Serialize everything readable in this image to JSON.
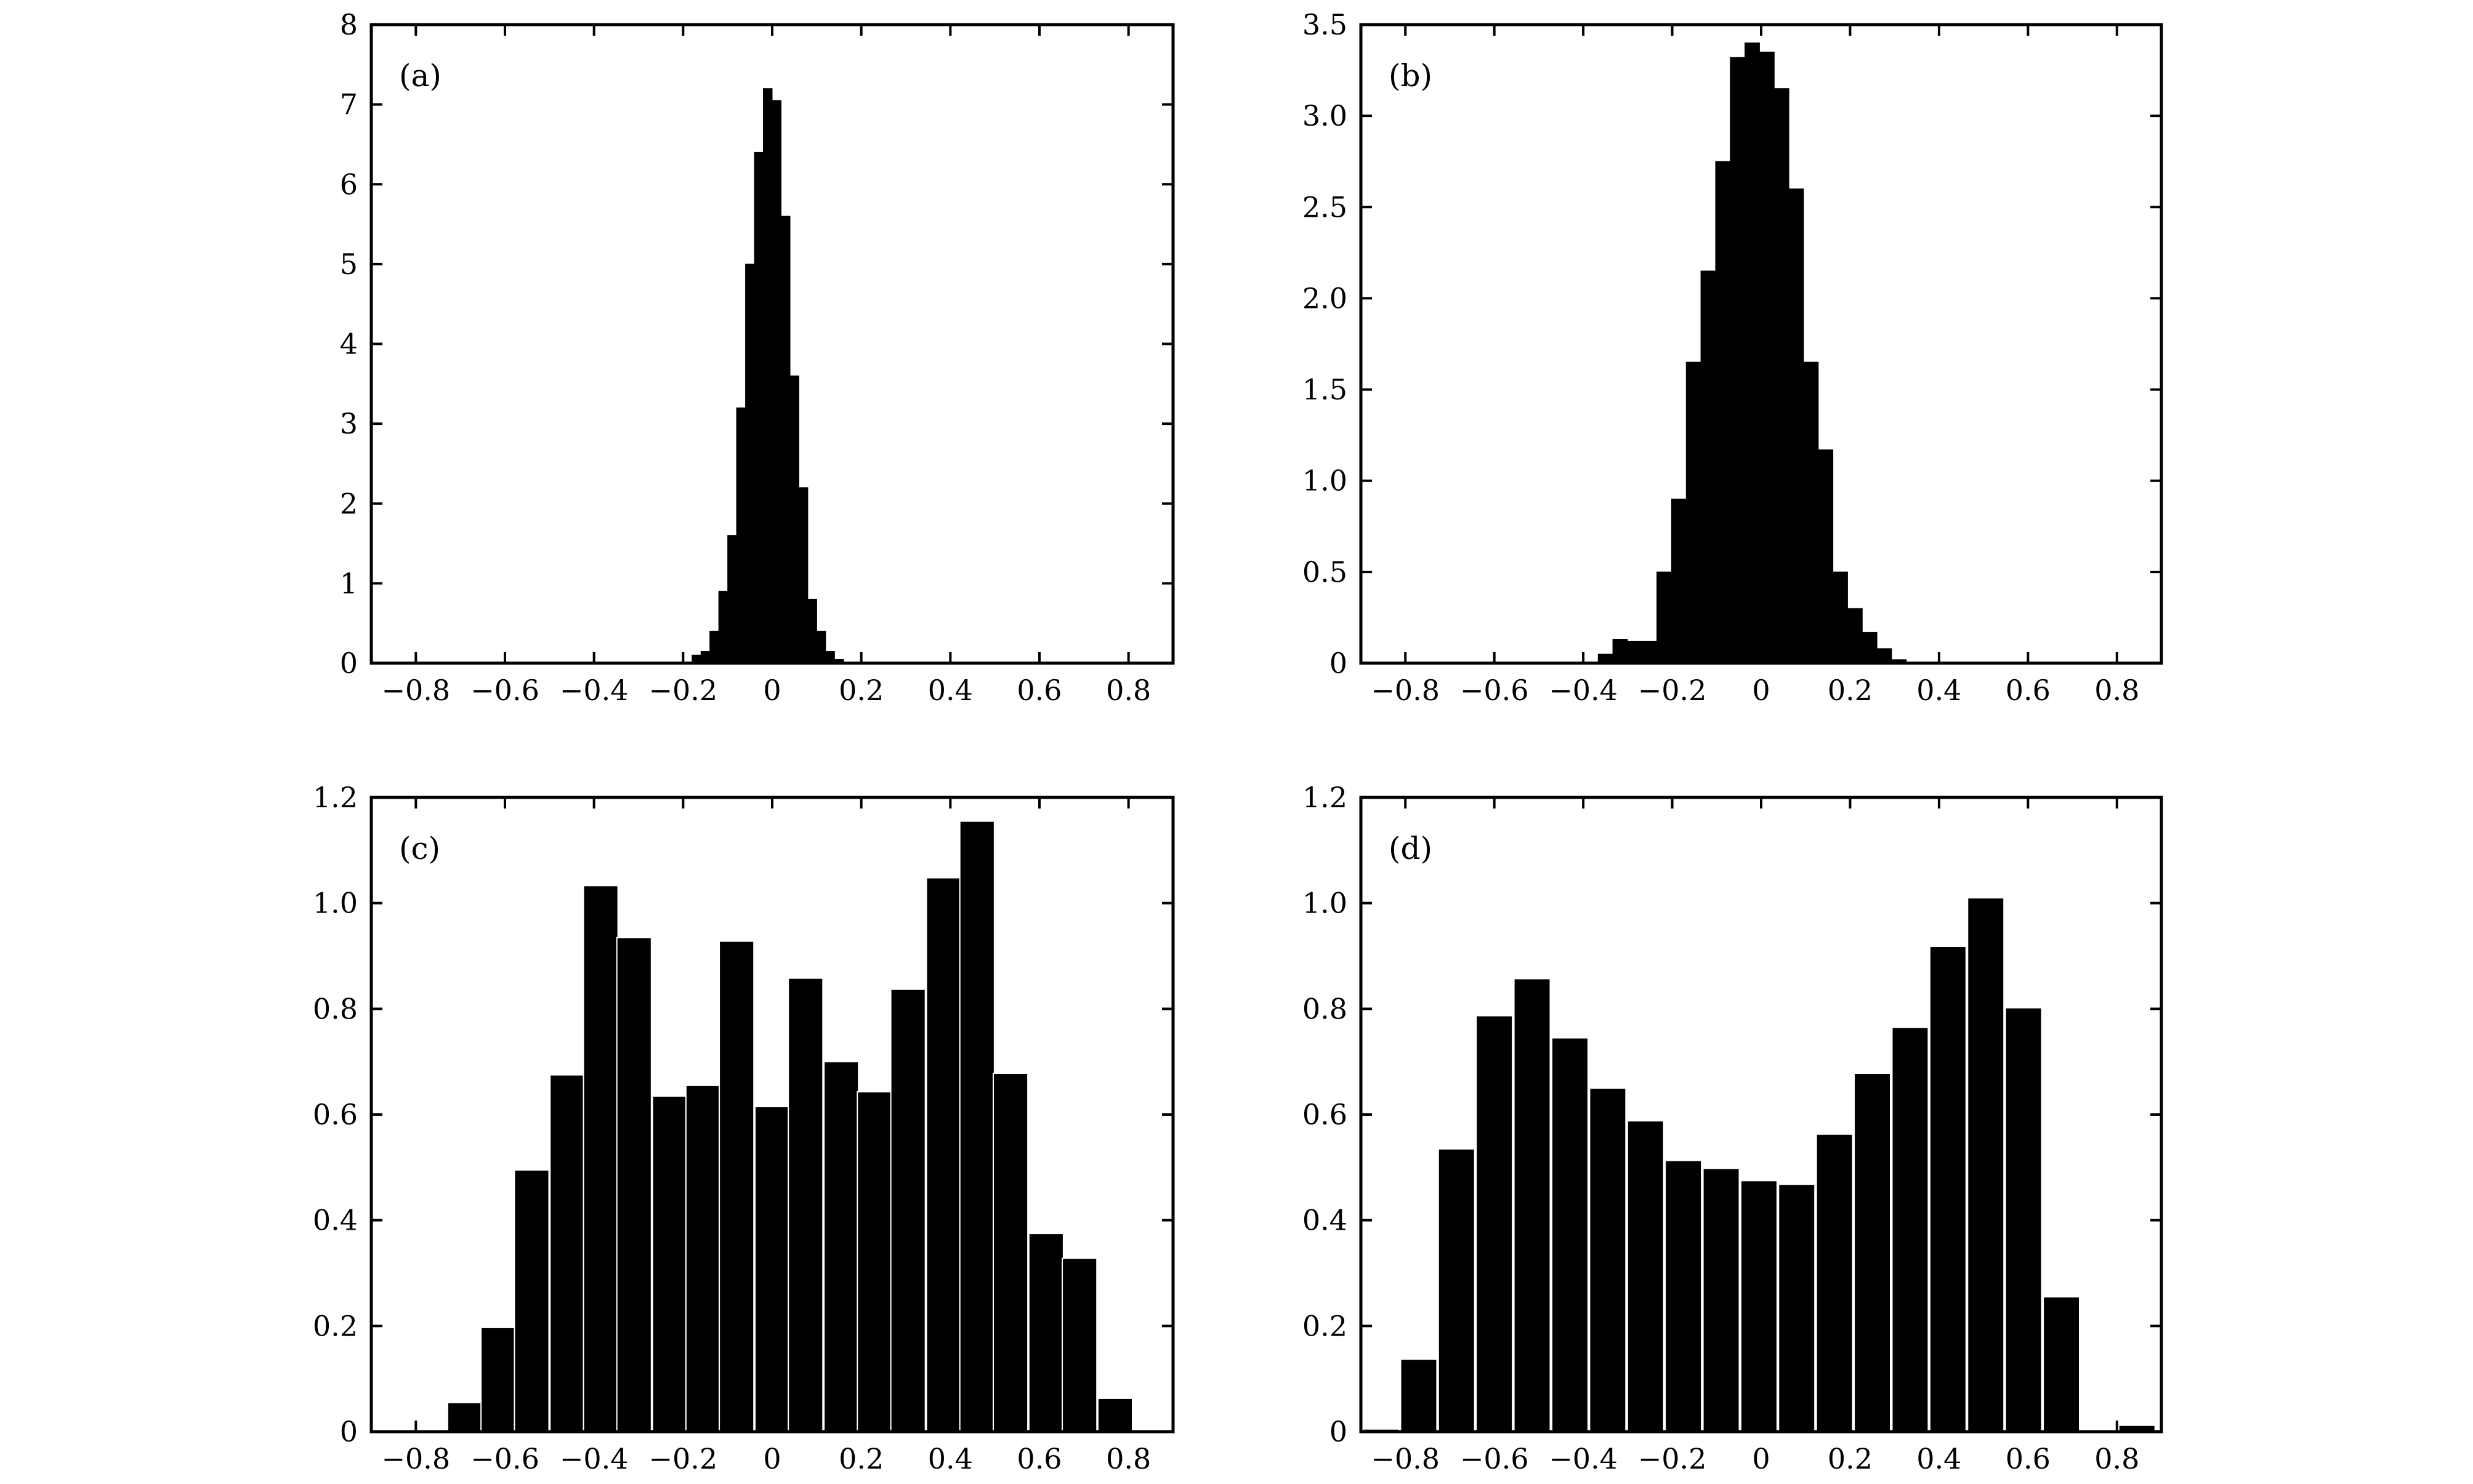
{
  "chart_data": [
    {
      "type": "bar",
      "panel_label": "(a)",
      "xlim": [
        -0.9,
        0.9
      ],
      "ylim": [
        0,
        8
      ],
      "xticks": [
        -0.8,
        -0.6,
        -0.4,
        -0.2,
        0,
        0.2,
        0.4,
        0.6,
        0.8
      ],
      "xtick_labels": [
        "−0.8",
        "−0.6",
        "−0.4",
        "−0.2",
        "0",
        "0.2",
        "0.4",
        "0.6",
        "0.8"
      ],
      "yticks": [
        0,
        1,
        2,
        3,
        4,
        5,
        6,
        7,
        8
      ],
      "ytick_labels": [
        "0",
        "1",
        "2",
        "3",
        "4",
        "5",
        "6",
        "7",
        "8"
      ],
      "bar_width": 0.02,
      "gap": false,
      "x": [
        -0.17,
        -0.15,
        -0.13,
        -0.11,
        -0.09,
        -0.07,
        -0.05,
        -0.03,
        -0.01,
        0.01,
        0.03,
        0.05,
        0.07,
        0.09,
        0.11,
        0.13,
        0.15
      ],
      "values": [
        0.1,
        0.15,
        0.4,
        0.9,
        1.6,
        3.2,
        5.0,
        6.4,
        7.2,
        7.05,
        5.6,
        3.6,
        2.2,
        0.8,
        0.4,
        0.15,
        0.05
      ]
    },
    {
      "type": "bar",
      "panel_label": "(b)",
      "xlim": [
        -0.9,
        0.9
      ],
      "ylim": [
        0,
        3.5
      ],
      "xticks": [
        -0.8,
        -0.6,
        -0.4,
        -0.2,
        0,
        0.2,
        0.4,
        0.6,
        0.8
      ],
      "xtick_labels": [
        "−0.8",
        "−0.6",
        "−0.4",
        "−0.2",
        "0",
        "0.2",
        "0.4",
        "0.6",
        "0.8"
      ],
      "yticks": [
        0,
        0.5,
        1.0,
        1.5,
        2.0,
        2.5,
        3.0,
        3.5
      ],
      "ytick_labels": [
        "0",
        "0.5",
        "1.0",
        "1.5",
        "2.0",
        "2.5",
        "3.0",
        "3.5"
      ],
      "bar_width": 0.033,
      "gap": false,
      "x": [
        -0.35,
        -0.317,
        -0.284,
        -0.251,
        -0.218,
        -0.185,
        -0.152,
        -0.119,
        -0.086,
        -0.053,
        -0.02,
        0.013,
        0.046,
        0.079,
        0.112,
        0.145,
        0.178,
        0.211,
        0.244,
        0.277,
        0.31
      ],
      "values": [
        0.05,
        0.13,
        0.12,
        0.12,
        0.5,
        0.9,
        1.65,
        2.15,
        2.75,
        3.32,
        3.4,
        3.35,
        3.15,
        2.6,
        1.65,
        1.17,
        0.5,
        0.3,
        0.17,
        0.08,
        0.02
      ]
    },
    {
      "type": "bar",
      "panel_label": "(c)",
      "xlim": [
        -0.9,
        0.9
      ],
      "ylim": [
        0,
        1.2
      ],
      "xticks": [
        -0.8,
        -0.6,
        -0.4,
        -0.2,
        0,
        0.2,
        0.4,
        0.6,
        0.8
      ],
      "xtick_labels": [
        "−0.8",
        "−0.6",
        "−0.4",
        "−0.2",
        "0",
        "0.2",
        "0.4",
        "0.6",
        "0.8"
      ],
      "yticks": [
        0,
        0.2,
        0.4,
        0.6,
        0.8,
        1.0,
        1.2
      ],
      "ytick_labels": [
        "0",
        "0.2",
        "0.4",
        "0.6",
        "0.8",
        "1.0",
        "1.2"
      ],
      "bar_width": 0.0775,
      "gap": true,
      "x": [
        -0.77,
        -0.69,
        -0.615,
        -0.54,
        -0.46,
        -0.385,
        -0.31,
        -0.23,
        -0.155,
        -0.08,
        0.0,
        0.075,
        0.155,
        0.23,
        0.305,
        0.385,
        0.46,
        0.535,
        0.615,
        0.69,
        0.77
      ],
      "values": [
        0.003,
        0.055,
        0.197,
        0.495,
        0.675,
        1.033,
        0.935,
        0.635,
        0.655,
        0.928,
        0.615,
        0.858,
        0.7,
        0.643,
        0.837,
        1.048,
        1.155,
        0.678,
        0.375,
        0.328,
        0.063
      ]
    },
    {
      "type": "bar",
      "panel_label": "(d)",
      "xlim": [
        -0.9,
        0.9
      ],
      "ylim": [
        0,
        1.2
      ],
      "xticks": [
        -0.8,
        -0.6,
        -0.4,
        -0.2,
        0,
        0.2,
        0.4,
        0.6,
        0.8
      ],
      "xtick_labels": [
        "−0.8",
        "−0.6",
        "−0.4",
        "−0.2",
        "0",
        "0.2",
        "0.4",
        "0.6",
        "0.8"
      ],
      "yticks": [
        0,
        0.2,
        0.4,
        0.6,
        0.8,
        1.0,
        1.2
      ],
      "ytick_labels": [
        "0",
        "0.2",
        "0.4",
        "0.6",
        "0.8",
        "1.0",
        "1.2"
      ],
      "bar_width": 0.0815,
      "gap": true,
      "x": [
        -0.855,
        -0.77,
        -0.685,
        -0.6,
        -0.515,
        -0.43,
        -0.345,
        -0.26,
        -0.175,
        -0.09,
        -0.005,
        0.08,
        0.165,
        0.25,
        0.335,
        0.42,
        0.505,
        0.59,
        0.675,
        0.76,
        0.845
      ],
      "values": [
        0.005,
        0.137,
        0.535,
        0.787,
        0.857,
        0.745,
        0.65,
        0.588,
        0.513,
        0.498,
        0.475,
        0.468,
        0.563,
        0.678,
        0.765,
        0.918,
        1.01,
        0.802,
        0.255,
        0.0,
        0.012
      ]
    }
  ]
}
